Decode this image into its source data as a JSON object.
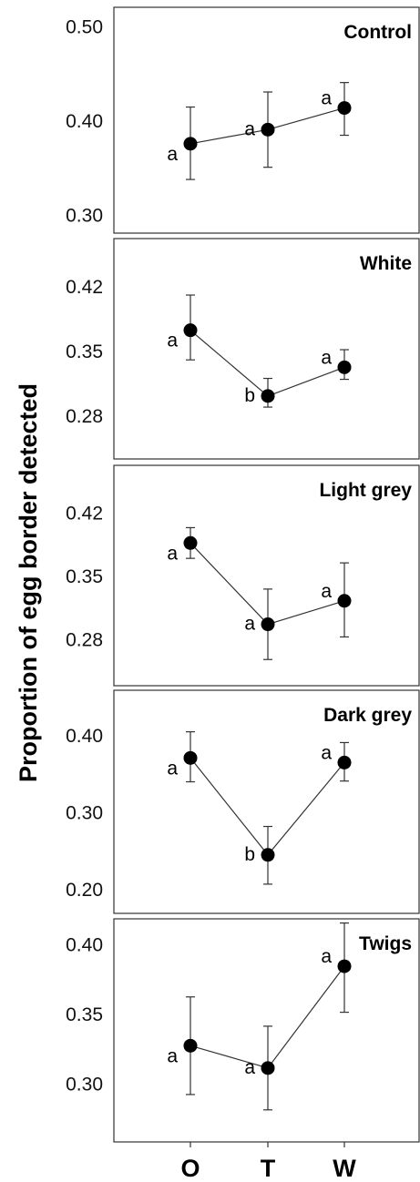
{
  "chart_data": {
    "type": "line",
    "ylabel": "Proportion of egg border detected",
    "categories": [
      "O",
      "T",
      "W"
    ],
    "panels": [
      {
        "title": "Control",
        "ylim": [
          0.28,
          0.52
        ],
        "yticks": [
          0.3,
          0.4,
          0.5
        ],
        "yticklabels": [
          "0.30",
          "0.40",
          "0.50"
        ],
        "values": [
          0.375,
          0.39,
          0.413
        ],
        "err_low": [
          0.337,
          0.35,
          0.384
        ],
        "err_high": [
          0.414,
          0.43,
          0.44
        ],
        "letters": [
          "a",
          "a",
          "a"
        ]
      },
      {
        "title": "White",
        "ylim": [
          0.233,
          0.471
        ],
        "yticks": [
          0.28,
          0.35,
          0.42
        ],
        "yticklabels": [
          "0.28",
          "0.35",
          "0.42"
        ],
        "values": [
          0.372,
          0.301,
          0.332
        ],
        "err_low": [
          0.34,
          0.289,
          0.319
        ],
        "err_high": [
          0.41,
          0.32,
          0.351
        ],
        "letters": [
          "a",
          "b",
          "a"
        ]
      },
      {
        "title": "Light grey",
        "ylim": [
          0.228,
          0.472
        ],
        "yticks": [
          0.28,
          0.35,
          0.42
        ],
        "yticklabels": [
          "0.28",
          "0.35",
          "0.42"
        ],
        "values": [
          0.386,
          0.296,
          0.322
        ],
        "err_low": [
          0.369,
          0.257,
          0.282
        ],
        "err_high": [
          0.403,
          0.335,
          0.364
        ],
        "letters": [
          "a",
          "a",
          "a"
        ]
      },
      {
        "title": "Dark grey",
        "ylim": [
          0.168,
          0.458
        ],
        "yticks": [
          0.2,
          0.3,
          0.4
        ],
        "yticklabels": [
          "0.20",
          "0.30",
          "0.40"
        ],
        "values": [
          0.37,
          0.244,
          0.364
        ],
        "err_low": [
          0.339,
          0.206,
          0.34
        ],
        "err_high": [
          0.404,
          0.281,
          0.39
        ],
        "letters": [
          "a",
          "b",
          "a"
        ]
      },
      {
        "title": "Twigs",
        "ylim": [
          0.258,
          0.418
        ],
        "yticks": [
          0.3,
          0.35,
          0.4
        ],
        "yticklabels": [
          "0.30",
          "0.35",
          "0.40"
        ],
        "values": [
          0.327,
          0.311,
          0.384
        ],
        "err_low": [
          0.292,
          0.281,
          0.351
        ],
        "err_high": [
          0.362,
          0.341,
          0.415
        ],
        "letters": [
          "a",
          "a",
          "a"
        ]
      }
    ]
  }
}
